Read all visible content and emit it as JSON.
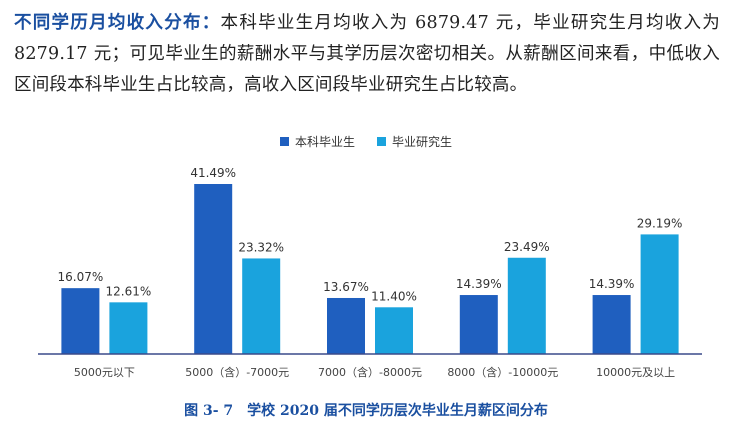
{
  "paragraph": {
    "lead": "不同学历月均收入分布：",
    "body": "本科毕业生月均收入为 6879.47 元，毕业研究生月均收入为 8279.17 元；可见毕业生的薪酬水平与其学历层次密切相关。从薪酬区间来看，中低收入区间段本科毕业生占比较高，高收入区间段毕业研究生占比较高。"
  },
  "caption": "图 3- 7　学校 2020 届不同学历层次毕业生月薪区间分布",
  "colors": {
    "series1": "#1f5fbf",
    "series2": "#1aa3dd",
    "axis": "#3a4a8a"
  },
  "chart_data": {
    "type": "bar",
    "categories": [
      "5000元以下",
      "5000（含）-7000元",
      "7000（含）-8000元",
      "8000（含）-10000元",
      "10000元及以上"
    ],
    "series": [
      {
        "name": "本科毕业生",
        "values": [
          16.07,
          41.49,
          13.67,
          14.39,
          14.39
        ],
        "labels": [
          "16.07%",
          "41.49%",
          "13.67%",
          "14.39%",
          "14.39%"
        ]
      },
      {
        "name": "毕业研究生",
        "values": [
          12.61,
          23.32,
          11.4,
          23.49,
          29.19
        ],
        "labels": [
          "12.61%",
          "23.32%",
          "11.40%",
          "23.49%",
          "29.19%"
        ]
      }
    ],
    "legend_position": "top-center",
    "grid": false
  }
}
